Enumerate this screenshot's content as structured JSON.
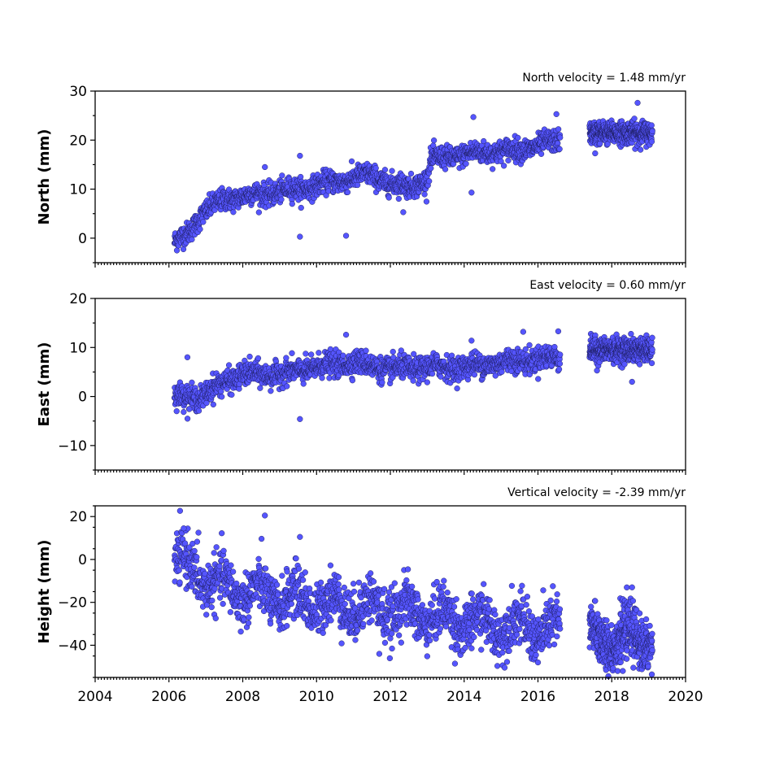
{
  "chart_data": [
    {
      "type": "scatter",
      "title": "North velocity = 1.48 mm/yr",
      "ylabel": "North (mm)",
      "xlim": [
        2004,
        2020
      ],
      "ylim": [
        -5,
        30
      ],
      "yticks": [
        0,
        10,
        20,
        30
      ],
      "marker_color": "#5555ff",
      "trend_points": [
        {
          "x": 2006.15,
          "y": -1
        },
        {
          "x": 2006.5,
          "y": 1
        },
        {
          "x": 2006.9,
          "y": 5
        },
        {
          "x": 2007.5,
          "y": 8
        },
        {
          "x": 2008.5,
          "y": 9
        },
        {
          "x": 2009.5,
          "y": 10
        },
        {
          "x": 2010.5,
          "y": 11.5
        },
        {
          "x": 2011.5,
          "y": 13
        },
        {
          "x": 2012.0,
          "y": 11
        },
        {
          "x": 2012.5,
          "y": 10.5
        },
        {
          "x": 2013.0,
          "y": 12
        },
        {
          "x": 2013.1,
          "y": 16
        },
        {
          "x": 2013.5,
          "y": 16.5
        },
        {
          "x": 2014.5,
          "y": 17.5
        },
        {
          "x": 2015.5,
          "y": 18
        },
        {
          "x": 2016.6,
          "y": 20
        }
      ],
      "segment2": {
        "x_start": 2017.4,
        "x_end": 2019.1,
        "y_mean": 21.5
      },
      "scatter_std": 1.1,
      "outliers": [
        {
          "x": 2009.55,
          "y": 16.8
        },
        {
          "x": 2009.55,
          "y": 0.3
        },
        {
          "x": 2010.8,
          "y": 0.5
        },
        {
          "x": 2014.25,
          "y": 24.7
        },
        {
          "x": 2014.2,
          "y": 9.3
        },
        {
          "x": 2008.6,
          "y": 14.5
        },
        {
          "x": 2017.55,
          "y": 17.3
        },
        {
          "x": 2018.7,
          "y": 27.6
        },
        {
          "x": 2016.5,
          "y": 25.3
        },
        {
          "x": 2012.35,
          "y": 5.3
        }
      ]
    },
    {
      "type": "scatter",
      "title": "East velocity = 0.60 mm/yr",
      "ylabel": "East (mm)",
      "xlim": [
        2004,
        2020
      ],
      "ylim": [
        -15,
        20
      ],
      "yticks": [
        -10,
        0,
        10,
        20
      ],
      "marker_color": "#5555ff",
      "trend_points": [
        {
          "x": 2006.15,
          "y": 0
        },
        {
          "x": 2006.9,
          "y": 0
        },
        {
          "x": 2007.5,
          "y": 3
        },
        {
          "x": 2008.0,
          "y": 4.5
        },
        {
          "x": 2009.0,
          "y": 4.5
        },
        {
          "x": 2010.0,
          "y": 6
        },
        {
          "x": 2011.0,
          "y": 7
        },
        {
          "x": 2012.0,
          "y": 5.5
        },
        {
          "x": 2013.0,
          "y": 6
        },
        {
          "x": 2014.0,
          "y": 6
        },
        {
          "x": 2015.0,
          "y": 7
        },
        {
          "x": 2016.6,
          "y": 8
        }
      ],
      "segment2": {
        "x_start": 2017.4,
        "x_end": 2019.1,
        "y_mean": 9.5
      },
      "scatter_std": 1.2,
      "outliers": [
        {
          "x": 2006.5,
          "y": 8
        },
        {
          "x": 2009.55,
          "y": -4.6
        },
        {
          "x": 2010.8,
          "y": 12.6
        },
        {
          "x": 2016.55,
          "y": 13.3
        },
        {
          "x": 2015.6,
          "y": 13.2
        },
        {
          "x": 2018.55,
          "y": 3
        },
        {
          "x": 2017.6,
          "y": 5.3
        },
        {
          "x": 2014.2,
          "y": 11.4
        }
      ]
    },
    {
      "type": "scatter",
      "title": "Vertical velocity = -2.39 mm/yr",
      "ylabel": "Height (mm)",
      "xlim": [
        2004,
        2020
      ],
      "ylim": [
        -55,
        25
      ],
      "yticks": [
        -40,
        -20,
        0,
        20
      ],
      "marker_color": "#5555ff",
      "trend_points": [
        {
          "x": 2006.15,
          "y": 0
        },
        {
          "x": 2006.6,
          "y": -5
        },
        {
          "x": 2007.3,
          "y": -12
        },
        {
          "x": 2008.0,
          "y": -15
        },
        {
          "x": 2009.0,
          "y": -18
        },
        {
          "x": 2010.0,
          "y": -20
        },
        {
          "x": 2011.0,
          "y": -22
        },
        {
          "x": 2012.0,
          "y": -23
        },
        {
          "x": 2013.0,
          "y": -26
        },
        {
          "x": 2014.0,
          "y": -29
        },
        {
          "x": 2015.0,
          "y": -31
        },
        {
          "x": 2016.6,
          "y": -33
        }
      ],
      "segment2": {
        "x_start": 2017.4,
        "x_end": 2019.1,
        "y_mean": -37
      },
      "scatter_std": 6,
      "outliers": [
        {
          "x": 2008.6,
          "y": 20.5
        },
        {
          "x": 2009.55,
          "y": 10.5
        },
        {
          "x": 2006.4,
          "y": 14.5
        },
        {
          "x": 2006.8,
          "y": 12.5
        },
        {
          "x": 2011.7,
          "y": -44
        },
        {
          "x": 2018.55,
          "y": -13
        },
        {
          "x": 2016.0,
          "y": -48
        },
        {
          "x": 2018.3,
          "y": -52
        }
      ]
    }
  ],
  "x_tick_labels": [
    "2004",
    "2006",
    "2008",
    "2010",
    "2012",
    "2014",
    "2016",
    "2018",
    "2020"
  ]
}
